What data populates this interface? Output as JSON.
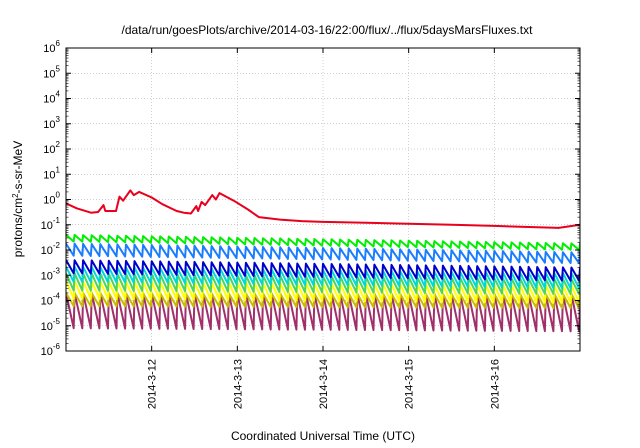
{
  "chart_data": {
    "type": "line",
    "title": "/data/run/goesPlots/archive/2014-03-16/22:00/flux/../flux/5daysMarsFluxes.txt",
    "xlabel": "Coordinated Universal Time (UTC)",
    "ylabel_parts": {
      "pre": "protons/cm",
      "sup": "2",
      "post": "-s-sr-MeV"
    },
    "x_range_days": [
      "2014-03-11",
      "2014-03-17"
    ],
    "x_ticks": [
      "2014-3-12",
      "2014-3-13",
      "2014-3-14",
      "2014-3-15",
      "2014-3-16"
    ],
    "y_scale": "log",
    "ylim": [
      1e-06,
      1000000.0
    ],
    "y_ticks": [
      {
        "base": "10",
        "exp": "-6"
      },
      {
        "base": "10",
        "exp": "-5"
      },
      {
        "base": "10",
        "exp": "-4"
      },
      {
        "base": "10",
        "exp": "-3"
      },
      {
        "base": "10",
        "exp": "-2"
      },
      {
        "base": "10",
        "exp": "-1"
      },
      {
        "base": "10",
        "exp": "0"
      },
      {
        "base": "10",
        "exp": "1"
      },
      {
        "base": "10",
        "exp": "2"
      },
      {
        "base": "10",
        "exp": "3"
      },
      {
        "base": "10",
        "exp": "4"
      },
      {
        "base": "10",
        "exp": "5"
      },
      {
        "base": "10",
        "exp": "6"
      }
    ],
    "grid": true,
    "series_style": "sawtooth",
    "sawtooth_period_hours": 2.4,
    "series": [
      {
        "color": "#e8001c",
        "points": [
          [
            "2014-03-11 00:00",
            0.7
          ],
          [
            "2014-03-11 03:00",
            0.45
          ],
          [
            "2014-03-11 07:00",
            0.3
          ],
          [
            "2014-03-11 09:00",
            0.32
          ],
          [
            "2014-03-11 10:30",
            0.6
          ],
          [
            "2014-03-11 11:00",
            0.35
          ],
          [
            "2014-03-11 14:00",
            0.35
          ],
          [
            "2014-03-11 15:00",
            1.3
          ],
          [
            "2014-03-11 16:00",
            0.9
          ],
          [
            "2014-03-11 18:00",
            2.3
          ],
          [
            "2014-03-11 19:00",
            1.5
          ],
          [
            "2014-03-11 20:30",
            2.0
          ],
          [
            "2014-03-12 00:00",
            1.2
          ],
          [
            "2014-03-12 03:00",
            0.65
          ],
          [
            "2014-03-12 07:00",
            0.35
          ],
          [
            "2014-03-12 09:00",
            0.3
          ],
          [
            "2014-03-12 11:00",
            0.28
          ],
          [
            "2014-03-12 12:30",
            0.55
          ],
          [
            "2014-03-12 13:00",
            0.35
          ],
          [
            "2014-03-12 14:00",
            0.8
          ],
          [
            "2014-03-12 15:00",
            0.6
          ],
          [
            "2014-03-12 17:00",
            1.5
          ],
          [
            "2014-03-12 18:00",
            1.0
          ],
          [
            "2014-03-12 19:00",
            1.8
          ],
          [
            "2014-03-12 23:00",
            0.9
          ],
          [
            "2014-03-13 03:00",
            0.4
          ],
          [
            "2014-03-13 06:00",
            0.2
          ],
          [
            "2014-03-13 12:00",
            0.16
          ],
          [
            "2014-03-13 18:00",
            0.14
          ],
          [
            "2014-03-14 00:00",
            0.13
          ],
          [
            "2014-03-14 12:00",
            0.12
          ],
          [
            "2014-03-15 00:00",
            0.11
          ],
          [
            "2014-03-15 12:00",
            0.1
          ],
          [
            "2014-03-16 00:00",
            0.09
          ],
          [
            "2014-03-16 12:00",
            0.08
          ],
          [
            "2014-03-16 18:00",
            0.075
          ],
          [
            "2014-03-17 00:00",
            0.1
          ]
        ]
      },
      {
        "color": "#00ee00",
        "high": [
          0.04,
          0.018
        ],
        "low": [
          0.022,
          0.01
        ]
      },
      {
        "color": "#1a7dff",
        "high": [
          0.018,
          0.008
        ],
        "low": [
          0.006,
          0.003
        ]
      },
      {
        "color": "#0000cc",
        "high": [
          0.004,
          0.002
        ],
        "low": [
          0.0012,
          0.0006
        ]
      },
      {
        "color": "#00d8d8",
        "high": [
          0.0022,
          0.0012
        ],
        "low": [
          0.00055,
          0.0003
        ]
      },
      {
        "color": "#4ed45a",
        "high": [
          0.0012,
          0.0007
        ],
        "low": [
          0.00025,
          0.00018
        ]
      },
      {
        "color": "#ffff00",
        "high": [
          0.0006,
          0.0004
        ],
        "low": [
          0.00012,
          8e-05
        ]
      },
      {
        "color": "#c8bb00",
        "high": [
          0.0002,
          0.00018
        ],
        "low": [
          6e-05,
          5e-05
        ]
      },
      {
        "color": "#a0306a",
        "high": [
          0.0002,
          0.00018
        ],
        "low": [
          8e-06,
          6e-06
        ]
      }
    ]
  }
}
